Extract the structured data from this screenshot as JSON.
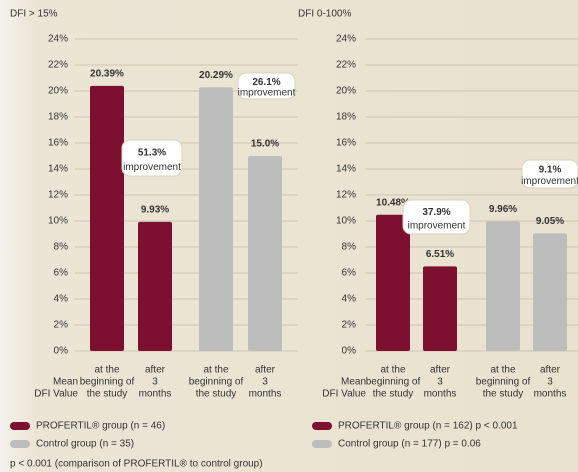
{
  "chart_data": [
    {
      "type": "bar",
      "axis_label": "DFI > 15%",
      "categories": [
        [
          "at the",
          "beginning of",
          "the study"
        ],
        [
          "after",
          "3",
          "months"
        ],
        [
          "at the",
          "beginning of",
          "the study"
        ],
        [
          "after",
          "3",
          "months"
        ]
      ],
      "xlabel": [
        "Mean",
        "DFI Value"
      ],
      "series": [
        {
          "name": "PROFERTIL® group (n = 46)",
          "color": "#7d1030",
          "values": [
            20.39,
            9.93,
            null,
            null
          ],
          "value_labels": [
            "20.39%",
            "9.93%",
            null,
            null
          ]
        },
        {
          "name": "Control group (n = 35)",
          "color": "#bdbdbd",
          "values": [
            null,
            null,
            20.29,
            15.0
          ],
          "value_labels": [
            null,
            null,
            "20.29%",
            "15.0%"
          ]
        }
      ],
      "annotations": [
        {
          "value_text": "51.3%",
          "text": "improvement"
        },
        {
          "value_text": "26.1%",
          "text": "improvement"
        }
      ],
      "ylim": [
        0,
        24
      ],
      "yticks": [
        {
          "value": 0,
          "label": "0%"
        },
        {
          "value": 2,
          "label": "2%"
        },
        {
          "value": 4,
          "label": "4%"
        },
        {
          "value": 6,
          "label": "6%"
        },
        {
          "value": 8,
          "label": "8%"
        },
        {
          "value": 10,
          "label": "10%"
        },
        {
          "value": 12,
          "label": "12%"
        },
        {
          "value": 14,
          "label": "14%"
        },
        {
          "value": 16,
          "label": "16%"
        },
        {
          "value": 18,
          "label": "18%"
        },
        {
          "value": 20,
          "label": "20%"
        },
        {
          "value": 22,
          "label": "22%"
        },
        {
          "value": 24,
          "label": "24%"
        }
      ],
      "grid": true,
      "footnote": "p < 0.001 (comparison of PROFERTIL® to control group)"
    },
    {
      "type": "bar",
      "axis_label": "DFI 0-100%",
      "categories": [
        [
          "at the",
          "beginning of",
          "the study"
        ],
        [
          "after",
          "3",
          "months"
        ],
        [
          "at the",
          "beginning of",
          "the study"
        ],
        [
          "after",
          "3",
          "months"
        ]
      ],
      "xlabel": [
        "Mean",
        "DFI Value"
      ],
      "series": [
        {
          "name": "PROFERTIL® group (n = 162) p < 0.001",
          "color": "#7d1030",
          "values": [
            10.48,
            6.51,
            null,
            null
          ],
          "value_labels": [
            "10.48%",
            "6.51%",
            null,
            null
          ]
        },
        {
          "name": "Control group (n = 177) p = 0.06",
          "color": "#bdbdbd",
          "values": [
            null,
            null,
            9.96,
            9.05
          ],
          "value_labels": [
            null,
            null,
            "9.96%",
            "9.05%"
          ]
        }
      ],
      "annotations": [
        {
          "value_text": "37.9%",
          "text": "improvement"
        },
        {
          "value_text": "9.1%",
          "text": "improvement"
        }
      ],
      "ylim": [
        0,
        24
      ],
      "yticks": [
        {
          "value": 0,
          "label": "0%"
        },
        {
          "value": 2,
          "label": "2%"
        },
        {
          "value": 4,
          "label": "4%"
        },
        {
          "value": 6,
          "label": "6%"
        },
        {
          "value": 8,
          "label": "8%"
        },
        {
          "value": 10,
          "label": "10%"
        },
        {
          "value": 12,
          "label": "12%"
        },
        {
          "value": 14,
          "label": "14%"
        },
        {
          "value": 16,
          "label": "16%"
        },
        {
          "value": 18,
          "label": "18%"
        },
        {
          "value": 20,
          "label": "20%"
        },
        {
          "value": 22,
          "label": "22%"
        },
        {
          "value": 24,
          "label": "24%"
        }
      ],
      "grid": true
    }
  ]
}
